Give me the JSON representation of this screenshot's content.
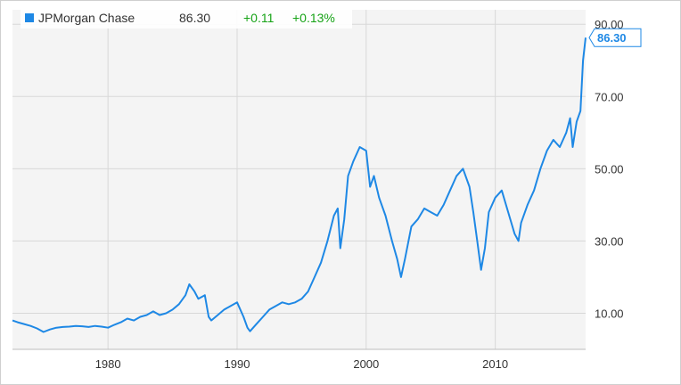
{
  "legend": {
    "name": "JPMorgan Chase",
    "price": "86.30",
    "change": "+0.11",
    "change_pct": "+0.13%"
  },
  "price_tag": "86.30",
  "colors": {
    "line": "#1e88e5",
    "positive": "#17a317",
    "plot_bg": "#f4f4f4",
    "grid": "#d8d8d8"
  },
  "chart_data": {
    "type": "line",
    "x_ticks": [
      {
        "label": "1980",
        "value": 1980
      },
      {
        "label": "1990",
        "value": 1990
      },
      {
        "label": "2000",
        "value": 2000
      },
      {
        "label": "2010",
        "value": 2010
      }
    ],
    "y_ticks": [
      {
        "label": "10.00",
        "value": 10
      },
      {
        "label": "30.00",
        "value": 30
      },
      {
        "label": "50.00",
        "value": 50
      },
      {
        "label": "70.00",
        "value": 70
      },
      {
        "label": "90.00",
        "value": 90
      }
    ],
    "xlim": [
      1972.6,
      2017.0
    ],
    "ylim": [
      0,
      94
    ],
    "grid": true,
    "last_value": 86.3,
    "series": [
      {
        "x": [
          1972.6,
          1973,
          1973.5,
          1974,
          1974.5,
          1975,
          1975.5,
          1976,
          1976.5,
          1977,
          1977.5,
          1978,
          1978.5,
          1979,
          1979.5,
          1980,
          1980.5,
          1981,
          1981.5,
          1982,
          1982.5,
          1983,
          1983.5,
          1984,
          1984.5,
          1985,
          1985.5,
          1986,
          1986.3,
          1986.7,
          1987,
          1987.5,
          1987.8,
          1988,
          1988.5,
          1989,
          1989.5,
          1990,
          1990.5,
          1990.8,
          1991,
          1991.5,
          1992,
          1992.5,
          1993,
          1993.5,
          1994,
          1994.5,
          1995,
          1995.5,
          1996,
          1996.5,
          1997,
          1997.5,
          1997.8,
          1998,
          1998.3,
          1998.6,
          1999,
          1999.5,
          2000,
          2000.3,
          2000.6,
          2001,
          2001.5,
          2002,
          2002.4,
          2002.7,
          2003,
          2003.5,
          2004,
          2004.5,
          2005,
          2005.5,
          2006,
          2006.5,
          2007,
          2007.5,
          2008,
          2008.3,
          2008.6,
          2008.9,
          2009.2,
          2009.5,
          2010,
          2010.5,
          2011,
          2011.5,
          2011.8,
          2012,
          2012.5,
          2013,
          2013.5,
          2014,
          2014.5,
          2015,
          2015.5,
          2015.8,
          2016,
          2016.3,
          2016.6,
          2016.8,
          2017.0
        ],
        "y": [
          8,
          7.5,
          7,
          6.5,
          5.8,
          4.8,
          5.5,
          6,
          6.2,
          6.3,
          6.5,
          6.4,
          6.2,
          6.5,
          6.3,
          6,
          6.8,
          7.5,
          8.5,
          8,
          9,
          9.5,
          10.5,
          9.5,
          10,
          11,
          12.5,
          15,
          18,
          16,
          14,
          15,
          9,
          8,
          9.5,
          11,
          12,
          13,
          9,
          6,
          5,
          7,
          9,
          11,
          12,
          13,
          12.5,
          13,
          14,
          16,
          20,
          24,
          30,
          37,
          39,
          28,
          36,
          48,
          52,
          56,
          55,
          45,
          48,
          42,
          37,
          30,
          25,
          20,
          25,
          34,
          36,
          39,
          38,
          37,
          40,
          44,
          48,
          50,
          45,
          38,
          30,
          22,
          28,
          38,
          42,
          44,
          38,
          32,
          30,
          35,
          40,
          44,
          50,
          55,
          58,
          56,
          60,
          64,
          56,
          63,
          66,
          80,
          86.3
        ]
      }
    ]
  }
}
